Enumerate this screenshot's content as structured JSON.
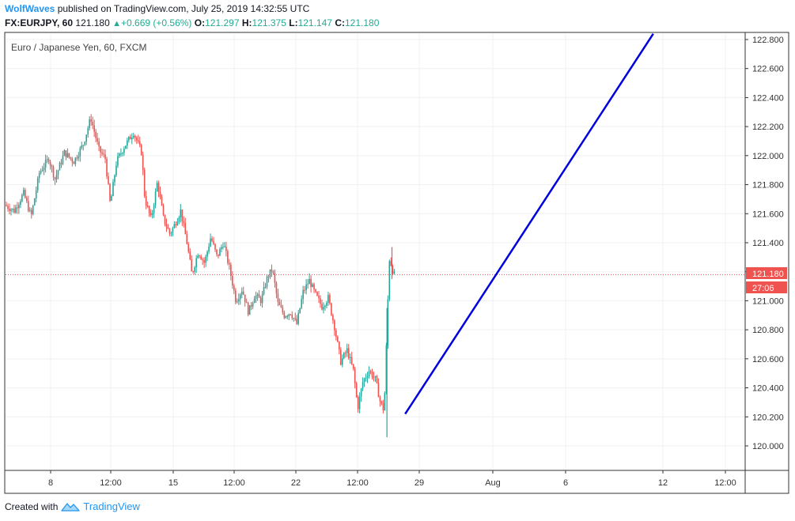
{
  "header": {
    "author": "WolfWaves",
    "published_text": "published on TradingView.com, July 25, 2019 14:32:55 UTC",
    "symbol": "FX:EURJPY, 60",
    "last_price": "121.180",
    "change": "+0.669 (+0.56%)",
    "ohlc": [
      {
        "label": "O:",
        "value": "121.297"
      },
      {
        "label": "H:",
        "value": "121.375"
      },
      {
        "label": "L:",
        "value": "121.147"
      },
      {
        "label": "C:",
        "value": "121.180"
      }
    ]
  },
  "chart_title": "Euro / Japanese Yen, 60, FXCM",
  "price_tag": "121.180",
  "countdown_tag": "27:06",
  "footer": {
    "created_with": "Created with",
    "brand": "TradingView"
  },
  "colors": {
    "up": "#26a69a",
    "down": "#ef5350",
    "trendline": "#0000dd",
    "price_line": "#ef5350",
    "grid": "#eef0f3",
    "axis": "#333333"
  },
  "chart_data": {
    "type": "candlestick",
    "title": "Euro / Japanese Yen, 60, FXCM",
    "ylim": [
      119.84,
      122.84
    ],
    "y_ticks": [
      "122.800",
      "122.600",
      "122.400",
      "122.200",
      "122.000",
      "121.800",
      "121.600",
      "121.400",
      "121.200",
      "121.000",
      "120.800",
      "120.600",
      "120.400",
      "120.200",
      "120.000"
    ],
    "x_ticks": [
      "8",
      "12:00",
      "15",
      "12:00",
      "22",
      "12:00",
      "29",
      "Aug",
      "6",
      "12",
      "12:00"
    ],
    "last_price": 121.18,
    "price_path": [
      {
        "t": 0.0,
        "p": 121.66
      },
      {
        "t": 1.5,
        "p": 121.62
      },
      {
        "t": 3.0,
        "p": 121.74
      },
      {
        "t": 4.2,
        "p": 121.58
      },
      {
        "t": 5.5,
        "p": 121.88
      },
      {
        "t": 7.0,
        "p": 121.98
      },
      {
        "t": 8.0,
        "p": 121.84
      },
      {
        "t": 9.5,
        "p": 122.02
      },
      {
        "t": 11.0,
        "p": 121.96
      },
      {
        "t": 12.5,
        "p": 122.08
      },
      {
        "t": 13.7,
        "p": 122.26
      },
      {
        "t": 15.0,
        "p": 122.04
      },
      {
        "t": 16.0,
        "p": 121.98
      },
      {
        "t": 16.8,
        "p": 121.66
      },
      {
        "t": 17.8,
        "p": 121.96
      },
      {
        "t": 19.0,
        "p": 122.06
      },
      {
        "t": 20.5,
        "p": 122.16
      },
      {
        "t": 21.8,
        "p": 122.02
      },
      {
        "t": 22.3,
        "p": 121.7
      },
      {
        "t": 23.3,
        "p": 121.56
      },
      {
        "t": 24.3,
        "p": 121.82
      },
      {
        "t": 25.3,
        "p": 121.56
      },
      {
        "t": 26.3,
        "p": 121.46
      },
      {
        "t": 27.0,
        "p": 121.52
      },
      {
        "t": 28.0,
        "p": 121.62
      },
      {
        "t": 29.0,
        "p": 121.4
      },
      {
        "t": 29.8,
        "p": 121.18
      },
      {
        "t": 30.8,
        "p": 121.34
      },
      {
        "t": 31.8,
        "p": 121.26
      },
      {
        "t": 32.8,
        "p": 121.44
      },
      {
        "t": 33.8,
        "p": 121.3
      },
      {
        "t": 34.8,
        "p": 121.4
      },
      {
        "t": 35.8,
        "p": 121.22
      },
      {
        "t": 36.8,
        "p": 121.0
      },
      {
        "t": 37.8,
        "p": 121.08
      },
      {
        "t": 38.8,
        "p": 120.92
      },
      {
        "t": 39.8,
        "p": 121.04
      },
      {
        "t": 40.8,
        "p": 121.0
      },
      {
        "t": 41.8,
        "p": 121.16
      },
      {
        "t": 42.6,
        "p": 121.22
      },
      {
        "t": 43.5,
        "p": 120.98
      },
      {
        "t": 44.5,
        "p": 120.9
      },
      {
        "t": 45.5,
        "p": 120.92
      },
      {
        "t": 46.5,
        "p": 120.84
      },
      {
        "t": 47.5,
        "p": 121.06
      },
      {
        "t": 48.5,
        "p": 121.14
      },
      {
        "t": 49.5,
        "p": 121.04
      },
      {
        "t": 50.5,
        "p": 120.96
      },
      {
        "t": 51.5,
        "p": 121.02
      },
      {
        "t": 52.5,
        "p": 120.82
      },
      {
        "t": 53.5,
        "p": 120.58
      },
      {
        "t": 54.5,
        "p": 120.66
      },
      {
        "t": 55.5,
        "p": 120.52
      },
      {
        "t": 56.2,
        "p": 120.26
      },
      {
        "t": 57.0,
        "p": 120.44
      },
      {
        "t": 58.0,
        "p": 120.52
      },
      {
        "t": 59.0,
        "p": 120.46
      },
      {
        "t": 59.8,
        "p": 120.3
      },
      {
        "t": 60.4,
        "p": 120.24
      },
      {
        "t": 60.8,
        "p": 120.74
      },
      {
        "t": 61.2,
        "p": 121.28
      },
      {
        "t": 62.0,
        "p": 121.18
      }
    ],
    "trendline": [
      {
        "t": 63.5,
        "p": 120.22
      },
      {
        "t": 103.0,
        "p": 122.84
      }
    ]
  }
}
